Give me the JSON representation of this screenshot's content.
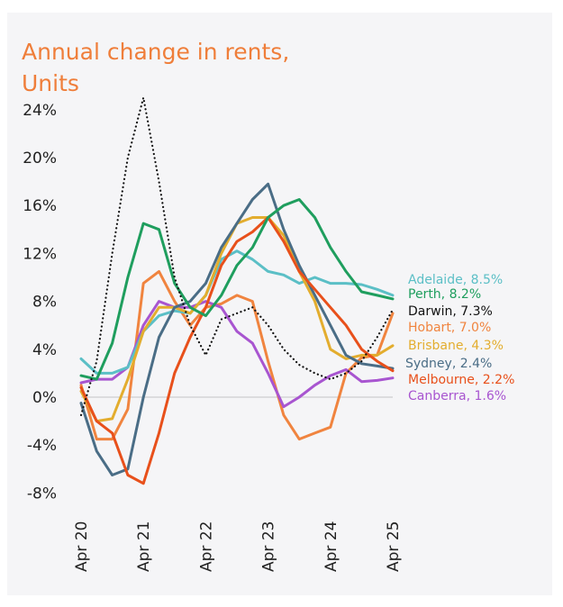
{
  "chart_data": {
    "type": "line",
    "title": "Annual change in rents, Units",
    "title_lines": [
      "Annual change in rents,",
      "Units"
    ],
    "title_color": "#ef7e3a",
    "xlabel": "",
    "ylabel": "",
    "x_ticks": [
      "Apr 20",
      "Apr 21",
      "Apr 22",
      "Apr 23",
      "Apr 24",
      "Apr 25"
    ],
    "y_ticks": [
      -8,
      -4,
      0,
      4,
      8,
      12,
      16,
      20,
      24
    ],
    "y_tick_labels": [
      "-8%",
      "-4%",
      "0%",
      "4%",
      "8%",
      "12%",
      "16%",
      "20%",
      "24%"
    ],
    "ylim": [
      -8,
      25
    ],
    "x": [
      "Apr 20",
      "Jul 20",
      "Oct 20",
      "Jan 21",
      "Apr 21",
      "Jul 21",
      "Oct 21",
      "Jan 22",
      "Apr 22",
      "Jul 22",
      "Oct 22",
      "Jan 23",
      "Apr 23",
      "Jul 23",
      "Oct 23",
      "Jan 24",
      "Apr 24",
      "Jul 24",
      "Oct 24",
      "Jan 25",
      "Apr 25"
    ],
    "grid": false,
    "zero_line": true,
    "legend_placement": "right (end-of-line labels)",
    "series": [
      {
        "name": "Adelaide",
        "label": "Adelaide, 8.5%",
        "color": "#5bbfc6",
        "dash": false,
        "values": [
          3.2,
          2.0,
          2.0,
          2.5,
          5.5,
          6.8,
          7.2,
          7.0,
          8.5,
          11.5,
          12.2,
          11.5,
          10.5,
          10.2,
          9.5,
          10.0,
          9.5,
          9.5,
          9.4,
          9.0,
          8.5
        ]
      },
      {
        "name": "Perth",
        "label": "Perth, 8.2%",
        "color": "#1f9e5e",
        "dash": false,
        "values": [
          1.8,
          1.5,
          4.5,
          10.0,
          14.5,
          14.0,
          9.5,
          7.5,
          6.8,
          8.5,
          11.0,
          12.5,
          15.0,
          16.0,
          16.5,
          15.0,
          12.5,
          10.5,
          8.8,
          8.5,
          8.2
        ]
      },
      {
        "name": "Darwin",
        "label": "Darwin, 7.3%",
        "color": "#111111",
        "dash": true,
        "values": [
          -1.5,
          3.0,
          12.0,
          20.0,
          25.0,
          18.0,
          10.0,
          6.0,
          3.5,
          6.5,
          7.0,
          7.5,
          6.0,
          4.0,
          2.7,
          2.0,
          1.5,
          2.0,
          3.0,
          5.0,
          7.3
        ]
      },
      {
        "name": "Hobart",
        "label": "Hobart, 7.0%",
        "color": "#f0843f",
        "dash": false,
        "values": [
          1.0,
          -3.5,
          -3.5,
          -1.0,
          9.5,
          10.5,
          8.0,
          6.0,
          7.5,
          7.8,
          8.5,
          8.0,
          3.0,
          -1.5,
          -3.5,
          -3.0,
          -2.5,
          2.0,
          3.3,
          3.5,
          7.0
        ]
      },
      {
        "name": "Brisbane",
        "label": "Brisbane, 4.3%",
        "color": "#e3ad2e",
        "dash": false,
        "values": [
          0.5,
          -2.0,
          -1.8,
          1.5,
          5.5,
          7.5,
          7.5,
          7.0,
          8.5,
          12.0,
          14.5,
          15.0,
          15.0,
          13.5,
          10.5,
          8.0,
          4.0,
          3.2,
          3.5,
          3.5,
          4.3
        ]
      },
      {
        "name": "Sydney",
        "label": "Sydney, 2.4%",
        "color": "#4a6d86",
        "dash": false,
        "values": [
          -0.5,
          -4.5,
          -6.5,
          -6.0,
          0.0,
          5.0,
          7.5,
          8.0,
          9.5,
          12.5,
          14.5,
          16.5,
          17.8,
          14.0,
          11.0,
          8.5,
          6.0,
          3.5,
          2.8,
          2.6,
          2.4
        ]
      },
      {
        "name": "Melbourne",
        "label": "Melbourne, 2.2%",
        "color": "#e8501b",
        "dash": false,
        "values": [
          0.8,
          -2.0,
          -3.0,
          -6.5,
          -7.2,
          -3.0,
          2.0,
          5.0,
          7.5,
          11.0,
          13.0,
          13.8,
          15.0,
          13.0,
          10.5,
          9.0,
          7.5,
          6.0,
          4.0,
          3.0,
          2.2
        ]
      },
      {
        "name": "Canberra",
        "label": "Canberra, 1.6%",
        "color": "#a855d0",
        "dash": false,
        "values": [
          1.2,
          1.5,
          1.5,
          2.5,
          6.0,
          8.0,
          7.5,
          7.5,
          8.0,
          7.5,
          5.5,
          4.5,
          2.0,
          -0.8,
          0.0,
          1.0,
          1.8,
          2.3,
          1.3,
          1.4,
          1.6
        ]
      }
    ]
  }
}
